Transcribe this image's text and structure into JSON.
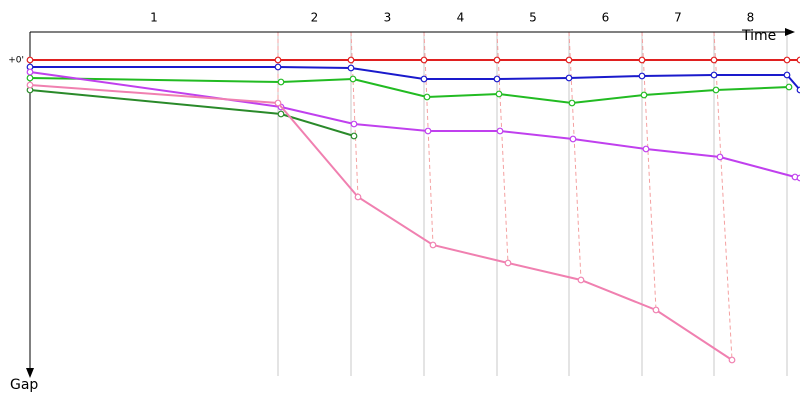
{
  "chart_data": {
    "type": "line",
    "x_label": "Time",
    "y_label": "Gap",
    "xlim": [
      0,
      770
    ],
    "ylim": [
      -28,
      316
    ],
    "xticks": [
      248,
      321,
      394,
      467,
      539,
      612,
      684,
      757
    ],
    "lap_labels": [
      "1",
      "2",
      "3",
      "4",
      "5",
      "6",
      "7",
      "8"
    ],
    "yticks": [
      {
        "value": 0,
        "label": "+0'"
      }
    ],
    "grid": true,
    "series": [
      {
        "color": "#e02020",
        "x": [
          0,
          248,
          321,
          394,
          467,
          539,
          612,
          684,
          757,
          770
        ],
        "values": [
          0,
          0,
          0,
          0,
          0,
          0,
          0,
          0,
          0,
          0
        ]
      },
      {
        "color": "#1a1acc",
        "x": [
          0,
          248,
          321,
          394,
          467,
          539,
          612,
          684,
          757,
          770
        ],
        "values": [
          7,
          7,
          8,
          19,
          19,
          18,
          16,
          15,
          15,
          30
        ]
      },
      {
        "color": "#22bb22",
        "x": [
          0,
          251,
          323,
          397,
          469,
          542,
          614,
          686,
          759
        ],
        "values": [
          18,
          22,
          19,
          37,
          34,
          43,
          35,
          30,
          27
        ]
      },
      {
        "color": "#2a8a2a",
        "x": [
          0,
          251,
          324
        ],
        "values": [
          30,
          54,
          76
        ]
      },
      {
        "color": "#c040ee",
        "x": [
          0,
          251,
          324,
          398,
          470,
          543,
          616,
          690,
          765,
          770
        ],
        "values": [
          12,
          47,
          64,
          71,
          71,
          79,
          89,
          97,
          117,
          118
        ]
      },
      {
        "color": "#f080b0",
        "x": [
          0,
          248,
          328,
          403,
          478,
          551,
          626,
          702
        ],
        "values": [
          25,
          43,
          137,
          185,
          203,
          220,
          250,
          300
        ]
      }
    ]
  }
}
